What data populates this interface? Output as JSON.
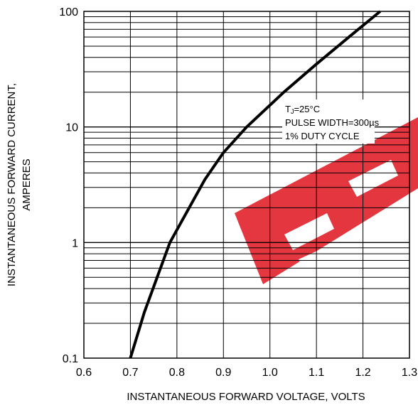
{
  "chart_data": {
    "type": "line",
    "title": "",
    "xlabel": "INSTANTANEOUS FORWARD VOLTAGE, VOLTS",
    "ylabel_lines": [
      "INSTANTANEOUS FORWARD CURRENT,",
      "AMPERES"
    ],
    "xlim": [
      0.6,
      1.3
    ],
    "ylim": [
      0.1,
      100
    ],
    "y_scale": "log",
    "grid": true,
    "x_ticks": [
      0.6,
      0.7,
      0.8,
      0.9,
      1.0,
      1.1,
      1.2,
      1.3
    ],
    "x_tick_labels": [
      "0.6",
      "0.7",
      "0.8",
      "0.9",
      "1.0",
      "1.1",
      "1.2",
      "1.3"
    ],
    "y_ticks": [
      0.1,
      1,
      10,
      100
    ],
    "y_tick_labels": [
      "0.1",
      "1",
      "10",
      "100"
    ],
    "series": [
      {
        "color": "#000000",
        "x": [
          0.7,
          0.73,
          0.785,
          0.86,
          0.9,
          0.95,
          1.03,
          1.1,
          1.17,
          1.237
        ],
        "y": [
          0.1,
          0.25,
          1.0,
          3.5,
          6.0,
          10.0,
          20.0,
          35.0,
          60.0,
          100.0
        ]
      }
    ],
    "annotation": {
      "tj_prefix": "T",
      "tj_subscript": "J",
      "tj_value": "=25°C",
      "line2": "PULSE WIDTH=300µs",
      "line3": "1% DUTY CYCLE"
    },
    "watermark_color": "#e0141e"
  }
}
